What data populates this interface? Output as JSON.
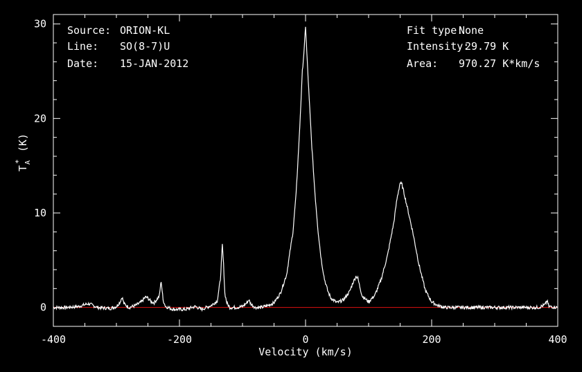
{
  "header_left": {
    "source_label": "Source:",
    "source_value": "ORION-KL",
    "line_label": "Line:",
    "line_value": "SO(8-7)U",
    "date_label": "Date:",
    "date_value": "15-JAN-2012"
  },
  "header_right": {
    "fit_label": "Fit type:",
    "fit_value": "None",
    "intensity_label": "Intensity:",
    "intensity_value": "29.79 K",
    "area_label": "Area:",
    "area_value": "970.27 K*km/s"
  },
  "colors": {
    "background": "#000000",
    "foreground": "#ffffff",
    "baseline": "#e01010"
  },
  "chart_data": {
    "type": "line",
    "xlabel": "Velocity (km/s)",
    "ylabel_main": "T",
    "ylabel_sub": "A",
    "ylabel_sup": "*",
    "ylabel_unit": "(K)",
    "xlim": [
      -400,
      400
    ],
    "ylim": [
      -2,
      31
    ],
    "x_ticks": [
      -400,
      -200,
      0,
      200,
      400
    ],
    "y_ticks": [
      0,
      10,
      20,
      30
    ],
    "baseline_y": 0,
    "grid": false,
    "series": [
      {
        "values_note": "spectrum",
        "x": [
          -400,
          -380,
          -360,
          -350,
          -345,
          -340,
          -330,
          -310,
          -300,
          -294,
          -291,
          -288,
          -280,
          -270,
          -260,
          -254,
          -250,
          -245,
          -240,
          -232,
          -229,
          -226,
          -222,
          -210,
          -190,
          -175,
          -165,
          -150,
          -140,
          -135,
          -132,
          -130,
          -128,
          -125,
          -120,
          -110,
          -100,
          -93,
          -90,
          -87,
          -80,
          -70,
          -60,
          -50,
          -40,
          -30,
          -20,
          -15,
          -10,
          -5,
          -2,
          0,
          2,
          5,
          10,
          15,
          20,
          25,
          30,
          35,
          40,
          50,
          60,
          70,
          75,
          80,
          83,
          86,
          90,
          100,
          110,
          120,
          130,
          140,
          145,
          150,
          153,
          160,
          170,
          180,
          190,
          200,
          210,
          220,
          240,
          260,
          300,
          340,
          370,
          380,
          383,
          386,
          400
        ],
        "y": [
          0,
          0,
          0.1,
          0.3,
          0.4,
          0.3,
          0,
          -0.1,
          0.1,
          0.6,
          1.1,
          0.4,
          0,
          0.2,
          0.6,
          1.1,
          1,
          0.6,
          0.5,
          1.2,
          2.8,
          0.8,
          0.1,
          -0.2,
          -0.2,
          0.1,
          -0.2,
          0.2,
          0.7,
          3,
          6.6,
          4.5,
          1.5,
          0.5,
          0,
          0,
          0.1,
          0.5,
          0.8,
          0.4,
          0,
          0,
          0.2,
          0.5,
          1.5,
          3.5,
          8,
          12,
          18,
          25,
          27.5,
          29.8,
          27,
          23,
          17,
          12,
          8,
          5,
          3,
          1.8,
          1,
          0.5,
          0.8,
          1.7,
          2.6,
          3.3,
          3.1,
          2.2,
          1.2,
          0.6,
          1.3,
          3,
          5.5,
          9,
          11.5,
          13.2,
          13,
          11,
          8,
          4.5,
          1.8,
          0.6,
          0.2,
          0,
          0,
          0,
          0,
          0,
          0,
          0.3,
          0.7,
          0.1,
          0
        ]
      }
    ]
  }
}
